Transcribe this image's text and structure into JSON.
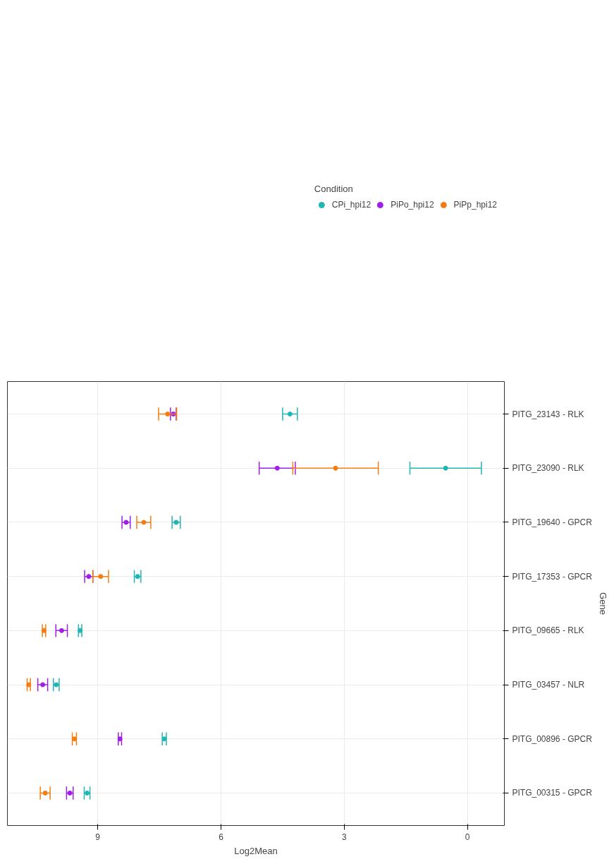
{
  "chart_data": {
    "type": "scatter",
    "orientation": "horizontal",
    "xlabel": "Log2Mean",
    "ylabel": "Gene",
    "legend_title": "Condition",
    "legend": "top",
    "grid": true,
    "marker": "circle",
    "categories": [
      "PITG_23143 - RLK",
      "PITG_23090 - RLK",
      "PITG_19640 - GPCR",
      "PITG_17353 - GPCR",
      "PITG_09665 - RLK",
      "PITG_03457 - NLR",
      "PITG_00896 - GPCR",
      "PITG_00315 - GPCR"
    ],
    "xlim": [
      11.2,
      -0.9
    ],
    "xticks": [
      0,
      3,
      6,
      9
    ],
    "series": [
      {
        "name": "CPi_hpi12",
        "color": "#20b5b5",
        "values": [
          4.32,
          0.53,
          7.09,
          8.03,
          9.43,
          10.01,
          7.38,
          9.26
        ],
        "errors": [
          0.18,
          0.87,
          0.1,
          0.08,
          0.04,
          0.07,
          0.05,
          0.07
        ]
      },
      {
        "name": "PiPo_hpi12",
        "color": "#a01fe8",
        "values": [
          7.16,
          4.63,
          8.31,
          9.22,
          9.88,
          10.34,
          8.46,
          9.68
        ],
        "errors": [
          0.07,
          0.44,
          0.1,
          0.1,
          0.14,
          0.12,
          0.04,
          0.08
        ]
      },
      {
        "name": "PiPp_hpi12",
        "color": "#f57c10",
        "values": [
          7.3,
          3.21,
          7.88,
          8.93,
          10.31,
          10.68,
          9.57,
          10.28
        ],
        "errors": [
          0.22,
          1.04,
          0.17,
          0.19,
          0.04,
          0.04,
          0.05,
          0.12
        ]
      }
    ]
  }
}
